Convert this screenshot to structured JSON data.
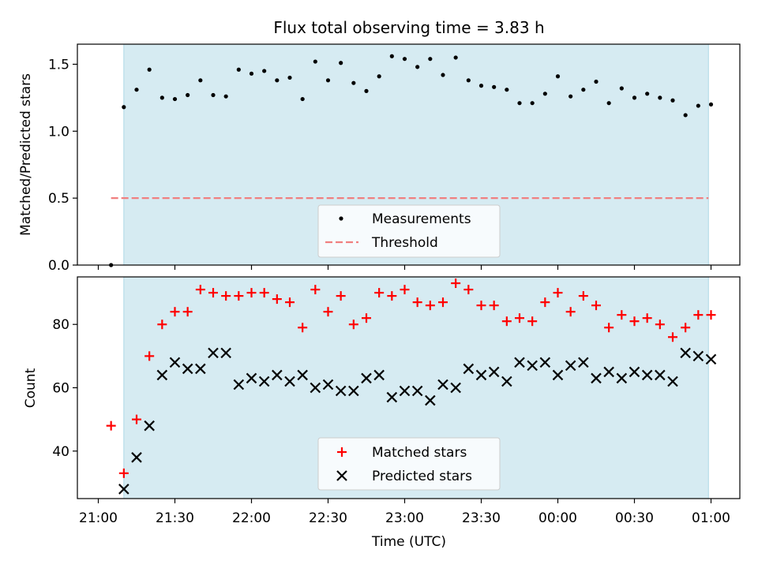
{
  "chart_data": [
    {
      "type": "scatter",
      "title": "Flux total observing time = 3.83 h",
      "xlabel": "",
      "ylabel": "Matched/Predicted stars",
      "ylim": [
        0,
        1.65
      ],
      "yticks": [
        "0.0",
        "0.5",
        "1.0",
        "1.5"
      ],
      "ytick_values": [
        0,
        0.5,
        1.0,
        1.5
      ],
      "shaded_region": {
        "x_start": "21:10",
        "x_end": "00:59",
        "color": "#add8e6"
      },
      "threshold": {
        "name": "Threshold",
        "value": 0.5,
        "x_start": "21:05",
        "x_end": "00:59",
        "color": "#f08080"
      },
      "series": [
        {
          "name": "Measurements",
          "color": "#000000",
          "x": [
            "21:05",
            "21:10",
            "21:15",
            "21:20",
            "21:25",
            "21:30",
            "21:35",
            "21:40",
            "21:45",
            "21:50",
            "21:55",
            "22:00",
            "22:05",
            "22:10",
            "22:15",
            "22:20",
            "22:25",
            "22:30",
            "22:35",
            "22:40",
            "22:45",
            "22:50",
            "22:55",
            "23:00",
            "23:05",
            "23:10",
            "23:15",
            "23:20",
            "23:25",
            "23:30",
            "23:35",
            "23:40",
            "23:45",
            "23:50",
            "23:55",
            "00:00",
            "00:05",
            "00:10",
            "00:15",
            "00:20",
            "00:25",
            "00:30",
            "00:35",
            "00:40",
            "00:45",
            "00:50",
            "00:55",
            "01:00"
          ],
          "values": [
            0.0,
            1.18,
            1.31,
            1.46,
            1.25,
            1.24,
            1.27,
            1.38,
            1.27,
            1.26,
            1.46,
            1.43,
            1.45,
            1.38,
            1.4,
            1.24,
            1.52,
            1.38,
            1.51,
            1.36,
            1.3,
            1.41,
            1.56,
            1.54,
            1.48,
            1.54,
            1.42,
            1.55,
            1.38,
            1.34,
            1.33,
            1.31,
            1.21,
            1.21,
            1.28,
            1.41,
            1.26,
            1.31,
            1.37,
            1.21,
            1.32,
            1.25,
            1.28,
            1.25,
            1.23,
            1.12,
            1.19,
            1.2
          ]
        }
      ],
      "legend": {
        "placement": "lower-center",
        "entries": [
          "Measurements",
          "Threshold"
        ]
      }
    },
    {
      "type": "scatter",
      "title": "",
      "xlabel": "Time (UTC)",
      "ylabel": "Count",
      "ylim": [
        25,
        95
      ],
      "yticks": [
        "40",
        "60",
        "80"
      ],
      "ytick_values": [
        40,
        60,
        80
      ],
      "xticks": [
        "21:00",
        "21:30",
        "22:00",
        "22:30",
        "23:00",
        "23:30",
        "00:00",
        "00:30",
        "01:00"
      ],
      "shaded_region": {
        "x_start": "21:10",
        "x_end": "00:59",
        "color": "#add8e6"
      },
      "series": [
        {
          "name": "Matched stars",
          "marker": "plus",
          "color": "#ff0000",
          "x": [
            "21:05",
            "21:10",
            "21:15",
            "21:20",
            "21:25",
            "21:30",
            "21:35",
            "21:40",
            "21:45",
            "21:50",
            "21:55",
            "22:00",
            "22:05",
            "22:10",
            "22:15",
            "22:20",
            "22:25",
            "22:30",
            "22:35",
            "22:40",
            "22:45",
            "22:50",
            "22:55",
            "23:00",
            "23:05",
            "23:10",
            "23:15",
            "23:20",
            "23:25",
            "23:30",
            "23:35",
            "23:40",
            "23:45",
            "23:50",
            "23:55",
            "00:00",
            "00:05",
            "00:10",
            "00:15",
            "00:20",
            "00:25",
            "00:30",
            "00:35",
            "00:40",
            "00:45",
            "00:50",
            "00:55",
            "01:00"
          ],
          "values": [
            48,
            33,
            50,
            70,
            80,
            84,
            84,
            91,
            90,
            89,
            89,
            90,
            90,
            88,
            87,
            79,
            91,
            84,
            89,
            80,
            82,
            90,
            89,
            91,
            87,
            86,
            87,
            93,
            91,
            86,
            86,
            81,
            82,
            81,
            87,
            90,
            84,
            89,
            86,
            79,
            83,
            81,
            82,
            80,
            76,
            79,
            83,
            83
          ]
        },
        {
          "name": "Predicted stars",
          "marker": "x",
          "color": "#000000",
          "x": [
            "21:10",
            "21:15",
            "21:20",
            "21:25",
            "21:30",
            "21:35",
            "21:40",
            "21:45",
            "21:50",
            "21:55",
            "22:00",
            "22:05",
            "22:10",
            "22:15",
            "22:20",
            "22:25",
            "22:30",
            "22:35",
            "22:40",
            "22:45",
            "22:50",
            "22:55",
            "23:00",
            "23:05",
            "23:10",
            "23:15",
            "23:20",
            "23:25",
            "23:30",
            "23:35",
            "23:40",
            "23:45",
            "23:50",
            "23:55",
            "00:00",
            "00:05",
            "00:10",
            "00:15",
            "00:20",
            "00:25",
            "00:30",
            "00:35",
            "00:40",
            "00:45",
            "00:50",
            "00:55",
            "01:00"
          ],
          "values": [
            28,
            38,
            48,
            64,
            68,
            66,
            66,
            71,
            71,
            61,
            63,
            62,
            64,
            62,
            64,
            60,
            61,
            59,
            59,
            63,
            64,
            57,
            59,
            59,
            56,
            61,
            60,
            66,
            64,
            65,
            62,
            68,
            67,
            68,
            64,
            67,
            68,
            63,
            65,
            63,
            65,
            64,
            64,
            62,
            71,
            70,
            69
          ]
        }
      ],
      "legend": {
        "placement": "lower-center",
        "entries": [
          "Matched stars",
          "Predicted stars"
        ]
      }
    }
  ]
}
